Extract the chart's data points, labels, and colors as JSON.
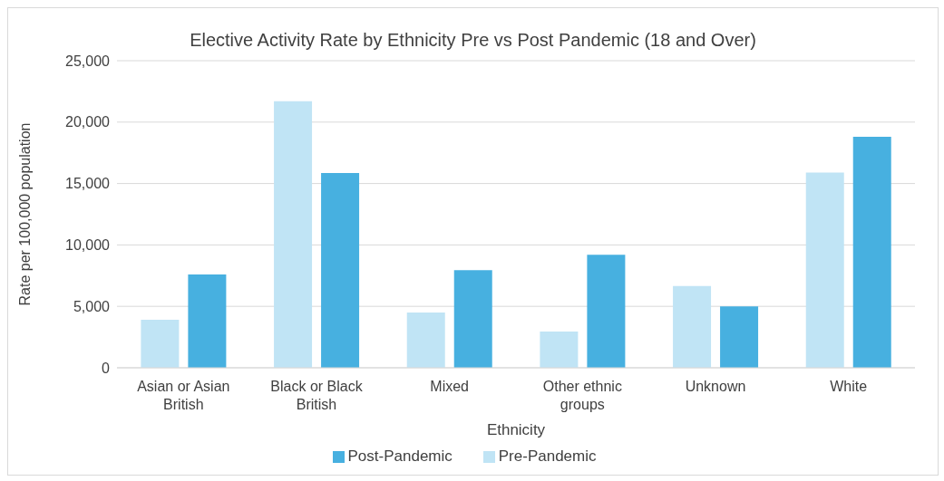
{
  "chart_data": {
    "type": "bar",
    "title": "Elective Activity Rate by Ethnicity Pre vs Post Pandemic (18 and Over)",
    "xlabel": "Ethnicity",
    "ylabel": "Rate per 100,000 population",
    "categories": [
      "Asian or Asian British",
      "Black or Black British",
      "Mixed",
      "Other ethnic groups",
      "Unknown",
      "White"
    ],
    "series": [
      {
        "name": "Pre-Pandemic",
        "color": "#c0e4f5",
        "values": [
          3900,
          21700,
          4500,
          2950,
          6650,
          15900
        ]
      },
      {
        "name": "Post-Pandemic",
        "color": "#47b0e0",
        "values": [
          7600,
          15850,
          7950,
          9200,
          5000,
          18800
        ]
      }
    ],
    "ylim": [
      0,
      25000
    ],
    "yticks": [
      {
        "value": 0,
        "label": "0"
      },
      {
        "value": 5000,
        "label": "5,000"
      },
      {
        "value": 10000,
        "label": "10,000"
      },
      {
        "value": 15000,
        "label": "15,000"
      },
      {
        "value": 20000,
        "label": "20,000"
      },
      {
        "value": 25000,
        "label": "25,000"
      }
    ],
    "grid": "y",
    "legend": "bottom"
  }
}
